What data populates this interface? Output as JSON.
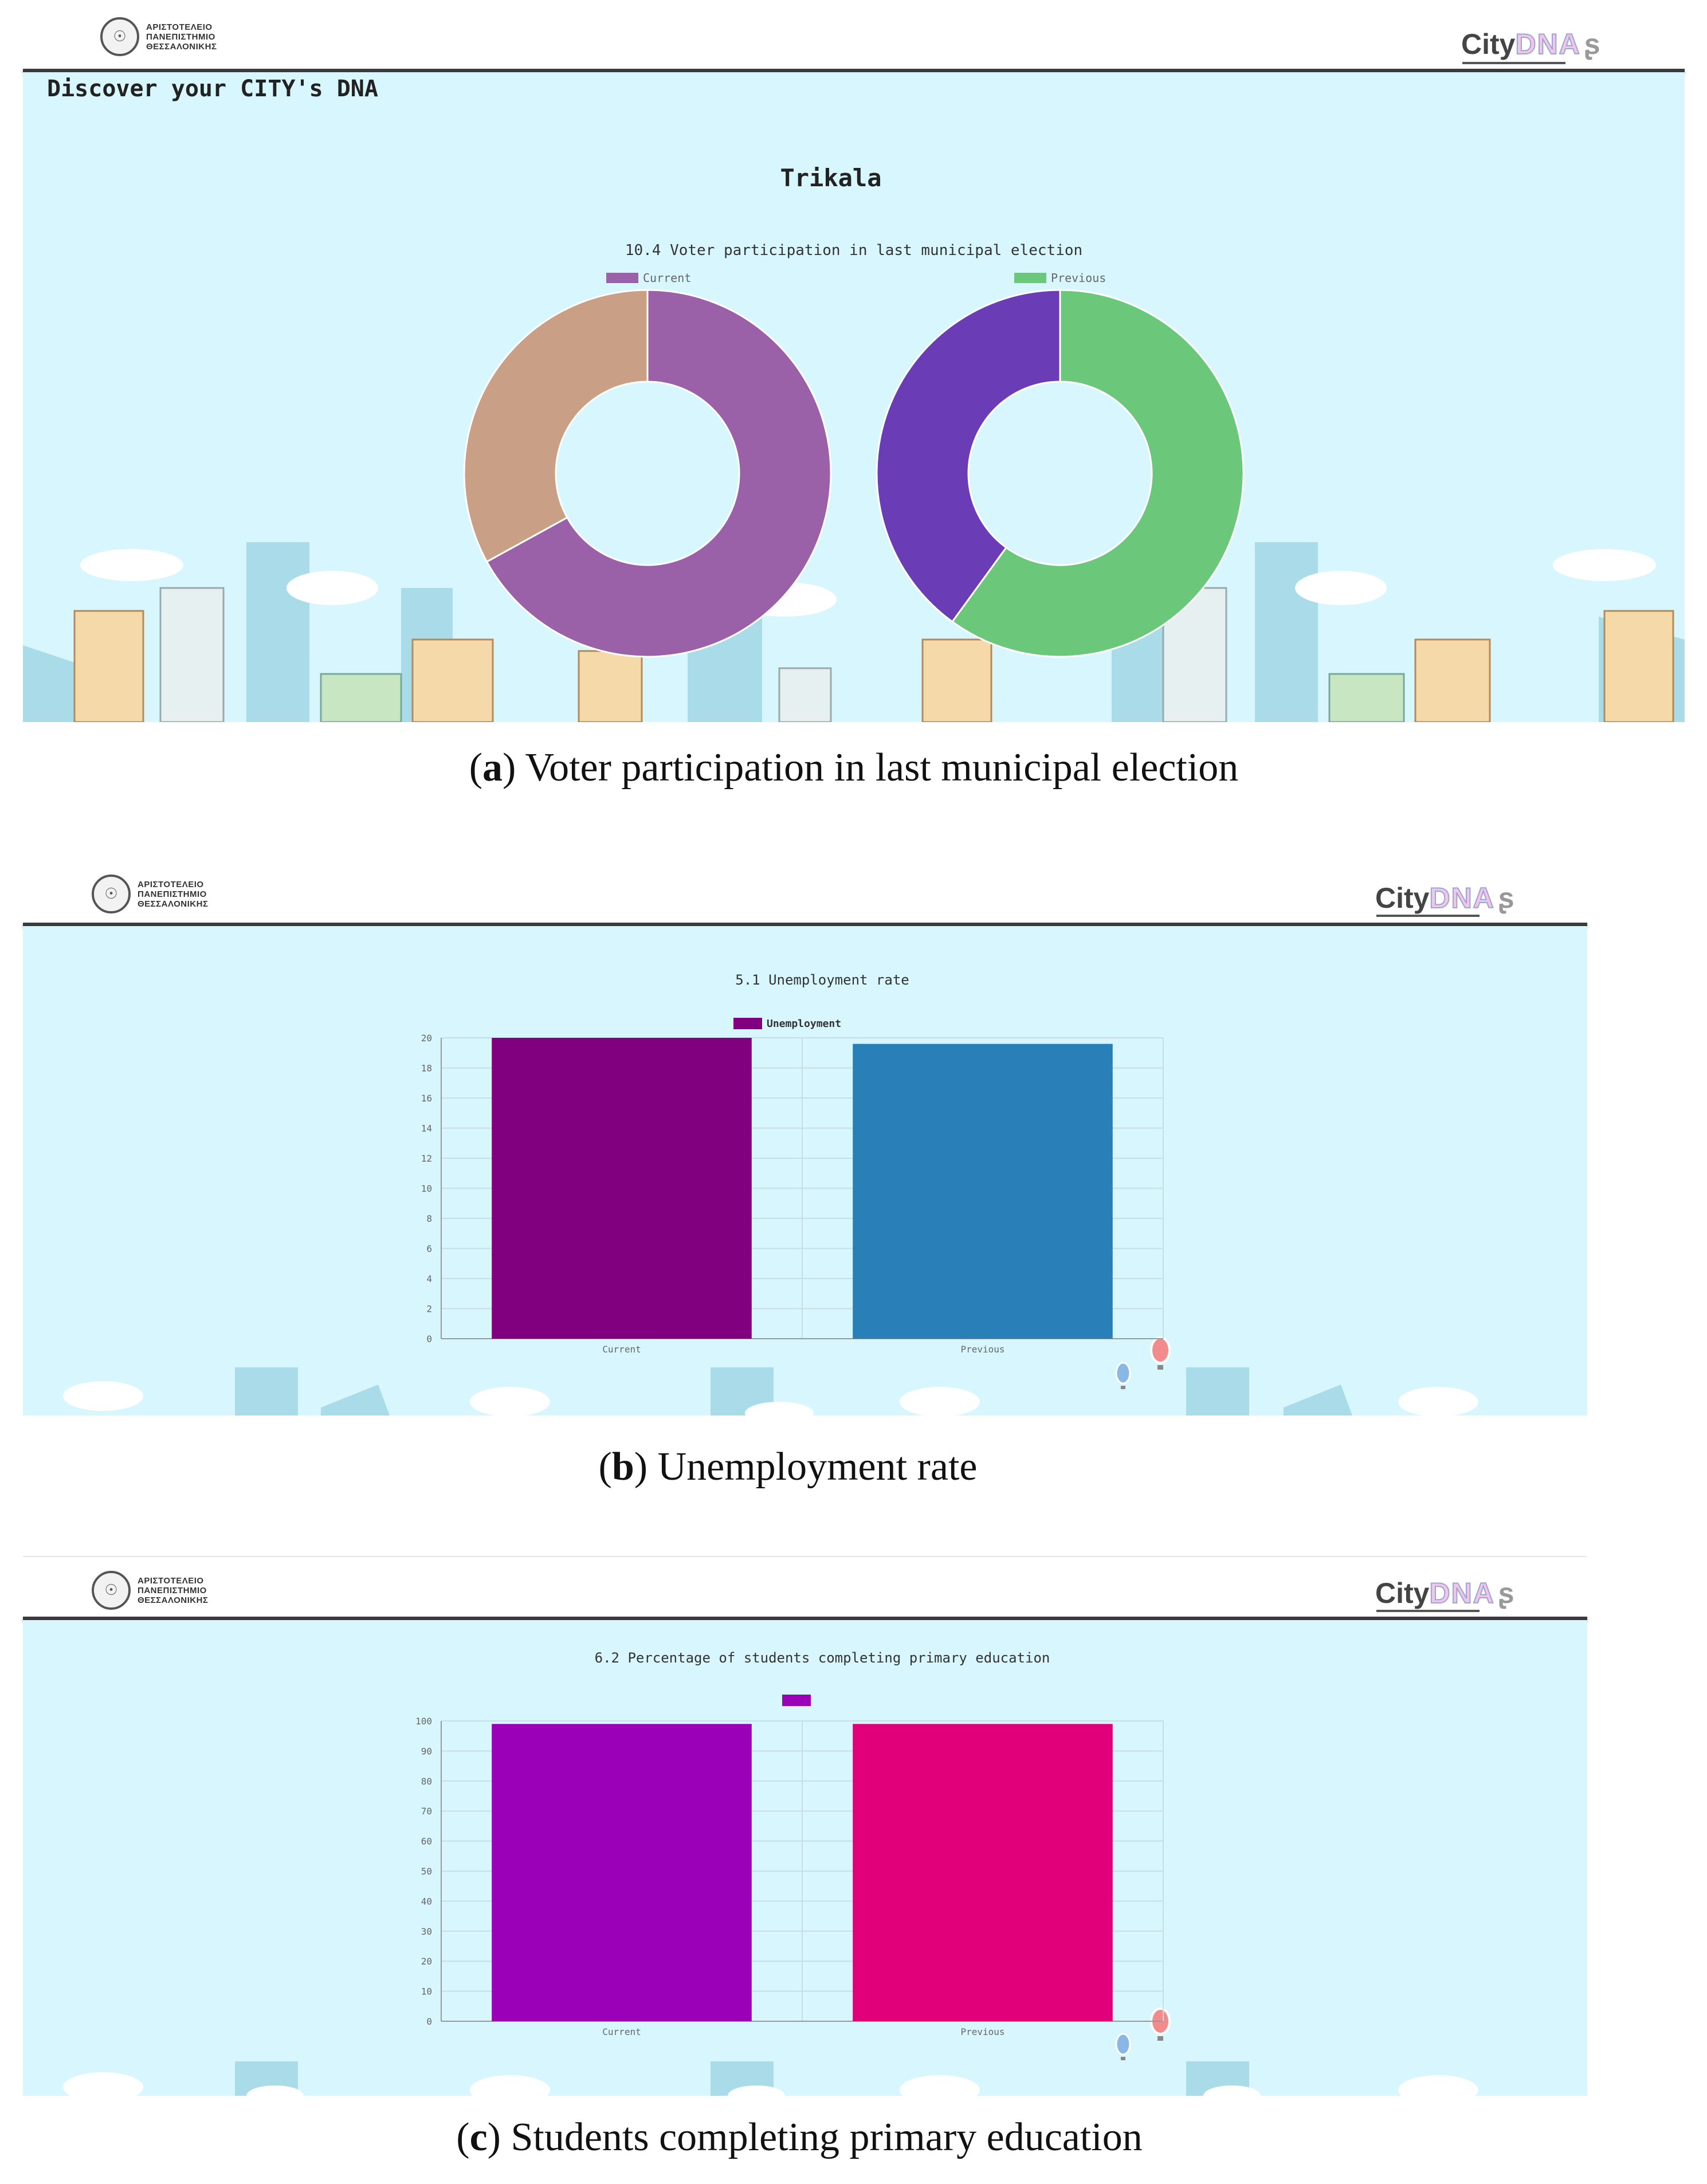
{
  "header": {
    "university_lines": [
      "ΑΡΙΣΤΟΤΕΛΕΙΟ",
      "ΠΑΝΕΠΙΣΤΗΜΙΟ",
      "ΘΕΣΣΑΛΟΝΙΚΗΣ"
    ],
    "brand_city": "City",
    "brand_dna": "DNA"
  },
  "panel_a": {
    "page_title": "Discover your CITY's DNA",
    "city_name": "Trikala",
    "caption_letter": "a",
    "caption_text": " Voter participation in last municipal election"
  },
  "panel_b": {
    "caption_letter": "b",
    "caption_text": " Unemployment rate"
  },
  "panel_c": {
    "caption_letter": "c",
    "caption_text": " Students completing primary education"
  },
  "chart_data": [
    {
      "type": "pie",
      "title": "10.4 Voter participation in last municipal election",
      "legend": [
        "Current",
        "Previous"
      ],
      "donuts": [
        {
          "name": "Current",
          "values": [
            67,
            33
          ],
          "colors": [
            "#9b61a8",
            "#c9a085"
          ]
        },
        {
          "name": "Previous",
          "values": [
            60,
            40
          ],
          "colors": [
            "#6bc87b",
            "#6a3db6"
          ]
        }
      ],
      "legend_colors": [
        "#9b61a8",
        "#6bc87b"
      ]
    },
    {
      "type": "bar",
      "title": "5.1 Unemployment rate",
      "legend": [
        "Unemployment"
      ],
      "categories": [
        "Current",
        "Previous"
      ],
      "values": [
        20,
        19.6
      ],
      "colors": [
        "#800080",
        "#2980b9"
      ],
      "ylim": [
        0,
        20
      ],
      "yticks": [
        0,
        2,
        4,
        6,
        8,
        10,
        12,
        14,
        16,
        18,
        20
      ],
      "grid": true
    },
    {
      "type": "bar",
      "title": "6.2 Percentage of students completing primary education",
      "legend": [
        ""
      ],
      "categories": [
        "Current",
        "Previous"
      ],
      "values": [
        99,
        99
      ],
      "colors": [
        "#9b00b8",
        "#e2007a"
      ],
      "ylim": [
        0,
        100
      ],
      "yticks": [
        0,
        10,
        20,
        30,
        40,
        50,
        60,
        70,
        80,
        90,
        100
      ],
      "grid": true
    }
  ]
}
